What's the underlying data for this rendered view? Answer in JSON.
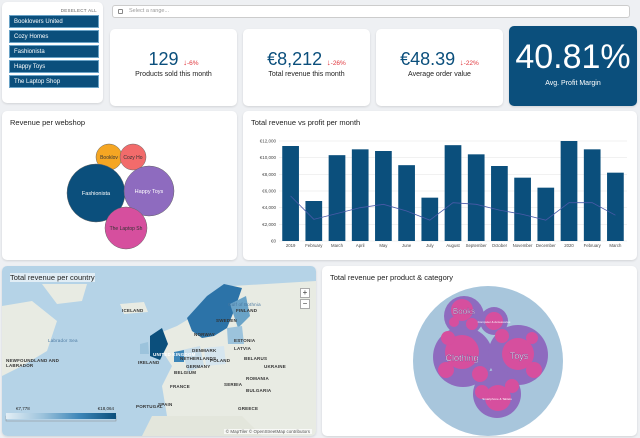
{
  "filters": {
    "deselect_label": "DESELECT ALL",
    "webshops": [
      "Booklovers United",
      "Cozy Homes",
      "Fashionista",
      "Happy Toys",
      "The Laptop Shop"
    ],
    "date_placeholder": "Select a range..."
  },
  "kpis": [
    {
      "value": "129",
      "change": "-6%",
      "label": "Products sold this month"
    },
    {
      "value": "€8,212",
      "change": "-26%",
      "label": "Total revenue this month"
    },
    {
      "value": "€48.39",
      "change": "-22%",
      "label": "Average order value"
    }
  ],
  "margin_kpi": {
    "value": "40.81%",
    "label": "Avg. Profit Margin"
  },
  "colors": {
    "primary": "#0b4f7c",
    "negative": "#e0363c",
    "bubble_pink": "#d64f9e",
    "bubble_purple": "#8e6bbf"
  },
  "bubble_title": "Revenue per webshop",
  "bubbles": [
    {
      "label": "Booklov",
      "color": "#f5a623"
    },
    {
      "label": "Cozy Ho",
      "color": "#f26b6b"
    },
    {
      "label": "Fashionista",
      "color": "#0b4f7c"
    },
    {
      "label": "Happy Toys",
      "color": "#8e6bbf"
    },
    {
      "label": "The Laptop Sh",
      "color": "#d64f9e"
    }
  ],
  "chart_data": {
    "type": "bar",
    "title": "Total revenue vs profit per month",
    "categories": [
      "2019",
      "February",
      "March",
      "April",
      "May",
      "June",
      "July",
      "August",
      "September",
      "October",
      "November",
      "December",
      "2020",
      "February",
      "March"
    ],
    "series": [
      {
        "values": [
          11400,
          4800,
          10300,
          11000,
          10800,
          9100,
          5200,
          11500,
          10400,
          9000,
          7600,
          6400,
          12000,
          11000,
          8200
        ]
      },
      {
        "values": [
          5400,
          2600,
          3300,
          4000,
          4400,
          3600,
          2500,
          4600,
          4400,
          3700,
          3200,
          2500,
          4600,
          4600,
          3100
        ]
      }
    ],
    "yticks": [
      "€0",
      "€2,000",
      "€4,000",
      "€6,000",
      "€8,000",
      "€10,000",
      "€12,000"
    ],
    "ylim": [
      0,
      12000
    ],
    "grid": true
  },
  "map": {
    "title": "Total revenue per country",
    "labels": [
      "ICELAND",
      "UNITED KINGDOM",
      "IRELAND",
      "NORWAY",
      "SWEDEN",
      "FINLAND",
      "ESTONIA",
      "LATVIA",
      "BELARUS",
      "POLAND",
      "GERMANY",
      "FRANCE",
      "SPAIN",
      "PORTUGAL",
      "BELGIUM",
      "DENMARK",
      "ROMANIA",
      "BULGARIA",
      "GREECE",
      "SERBIA",
      "UKRAINE",
      "NETHERLANDS"
    ],
    "sea_labels": [
      "Labrador Sea",
      "NEWFOUNDLAND AND LABRADOR",
      "Gulf of Bothnia"
    ],
    "legend_min": "€7,778",
    "legend_max": "€18,064",
    "attribution": "© MapTiler © OpenStreetMap contributors"
  },
  "category_chart": {
    "title": "Total revenue per product & category",
    "categories": [
      "Books",
      "Clothing",
      "Toys"
    ],
    "small_labels": [
      "Computer & Accessories",
      "Smartphone & Tablets"
    ]
  }
}
